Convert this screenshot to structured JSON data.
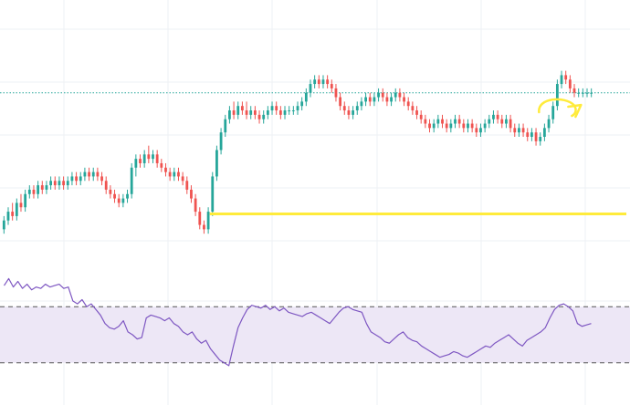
{
  "chart_data": [
    {
      "type": "candlestick",
      "title": "",
      "xlabel": "",
      "ylabel": "",
      "ylim": [
        62,
        120
      ],
      "grid": true,
      "colors": {
        "up": "#26a69a",
        "down": "#ef5350",
        "annotation": "#ffeb3b",
        "last_price_line": "#26a69a"
      },
      "candles": [
        [
          70,
          73,
          69,
          72
        ],
        [
          72,
          75,
          71,
          74
        ],
        [
          74,
          76,
          72,
          73
        ],
        [
          73,
          77,
          72,
          76
        ],
        [
          76,
          78,
          74,
          75
        ],
        [
          75,
          79,
          74,
          78
        ],
        [
          78,
          80,
          77,
          79
        ],
        [
          79,
          80,
          77,
          78
        ],
        [
          78,
          81,
          77,
          80
        ],
        [
          80,
          81,
          78,
          79
        ],
        [
          79,
          81,
          78,
          80
        ],
        [
          80,
          82,
          79,
          81
        ],
        [
          81,
          82,
          79,
          80
        ],
        [
          80,
          82,
          79,
          81
        ],
        [
          81,
          82,
          79,
          80
        ],
        [
          80,
          82,
          79,
          81
        ],
        [
          81,
          83,
          80,
          82
        ],
        [
          82,
          83,
          80,
          81
        ],
        [
          81,
          83,
          80,
          82
        ],
        [
          82,
          84,
          81,
          83
        ],
        [
          83,
          84,
          81,
          82
        ],
        [
          82,
          84,
          81,
          83
        ],
        [
          83,
          84,
          81,
          82
        ],
        [
          82,
          83,
          80,
          81
        ],
        [
          81,
          82,
          78,
          79
        ],
        [
          79,
          80,
          77,
          78
        ],
        [
          78,
          79,
          76,
          77
        ],
        [
          77,
          78,
          75,
          76
        ],
        [
          76,
          78,
          75,
          77
        ],
        [
          77,
          79,
          76,
          78
        ],
        [
          78,
          85,
          77,
          84
        ],
        [
          84,
          87,
          82,
          86
        ],
        [
          86,
          87,
          84,
          85
        ],
        [
          85,
          88,
          84,
          87
        ],
        [
          87,
          89,
          85,
          86
        ],
        [
          86,
          88,
          85,
          87
        ],
        [
          87,
          88,
          84,
          85
        ],
        [
          85,
          86,
          83,
          84
        ],
        [
          84,
          85,
          82,
          83
        ],
        [
          83,
          84,
          81,
          82
        ],
        [
          82,
          84,
          81,
          83
        ],
        [
          83,
          84,
          81,
          82
        ],
        [
          82,
          83,
          80,
          81
        ],
        [
          81,
          82,
          78,
          79
        ],
        [
          79,
          80,
          76,
          77
        ],
        [
          77,
          78,
          73,
          74
        ],
        [
          74,
          75,
          70,
          71
        ],
        [
          71,
          72,
          69,
          70
        ],
        [
          70,
          75,
          69,
          74
        ],
        [
          74,
          83,
          73,
          82
        ],
        [
          82,
          89,
          81,
          88
        ],
        [
          88,
          93,
          87,
          92
        ],
        [
          92,
          96,
          91,
          95
        ],
        [
          95,
          98,
          94,
          97
        ],
        [
          97,
          99,
          95,
          96
        ],
        [
          96,
          99,
          95,
          98
        ],
        [
          98,
          99,
          96,
          97
        ],
        [
          97,
          99,
          95,
          96
        ],
        [
          96,
          98,
          95,
          97
        ],
        [
          97,
          98,
          95,
          96
        ],
        [
          96,
          97,
          94,
          95
        ],
        [
          95,
          97,
          94,
          96
        ],
        [
          96,
          98,
          95,
          97
        ],
        [
          97,
          99,
          96,
          98
        ],
        [
          98,
          99,
          96,
          97
        ],
        [
          97,
          98,
          95,
          96
        ],
        [
          96,
          98,
          95,
          97
        ],
        [
          97,
          98,
          96,
          97
        ],
        [
          97,
          98,
          96,
          97
        ],
        [
          97,
          99,
          96,
          98
        ],
        [
          98,
          100,
          97,
          99
        ],
        [
          99,
          102,
          98,
          101
        ],
        [
          101,
          104,
          100,
          103
        ],
        [
          103,
          105,
          102,
          104
        ],
        [
          104,
          105,
          102,
          103
        ],
        [
          103,
          105,
          102,
          104
        ],
        [
          104,
          105,
          102,
          103
        ],
        [
          103,
          104,
          101,
          102
        ],
        [
          102,
          103,
          99,
          100
        ],
        [
          100,
          101,
          97,
          98
        ],
        [
          98,
          99,
          96,
          97
        ],
        [
          97,
          98,
          95,
          96
        ],
        [
          96,
          98,
          95,
          97
        ],
        [
          97,
          99,
          96,
          98
        ],
        [
          98,
          100,
          97,
          99
        ],
        [
          99,
          101,
          98,
          100
        ],
        [
          100,
          101,
          98,
          99
        ],
        [
          99,
          101,
          98,
          100
        ],
        [
          100,
          102,
          99,
          101
        ],
        [
          101,
          102,
          99,
          100
        ],
        [
          100,
          101,
          98,
          99
        ],
        [
          99,
          101,
          98,
          100
        ],
        [
          100,
          102,
          99,
          101
        ],
        [
          101,
          102,
          99,
          100
        ],
        [
          100,
          101,
          98,
          99
        ],
        [
          99,
          100,
          97,
          98
        ],
        [
          98,
          99,
          96,
          97
        ],
        [
          97,
          98,
          95,
          96
        ],
        [
          96,
          97,
          94,
          95
        ],
        [
          95,
          96,
          93,
          94
        ],
        [
          94,
          95,
          92,
          93
        ],
        [
          93,
          95,
          92,
          94
        ],
        [
          94,
          96,
          93,
          95
        ],
        [
          95,
          96,
          93,
          94
        ],
        [
          94,
          95,
          92,
          93
        ],
        [
          93,
          95,
          92,
          94
        ],
        [
          94,
          96,
          93,
          95
        ],
        [
          95,
          96,
          93,
          94
        ],
        [
          94,
          95,
          92,
          93
        ],
        [
          93,
          95,
          92,
          94
        ],
        [
          94,
          95,
          92,
          93
        ],
        [
          93,
          94,
          91,
          92
        ],
        [
          92,
          94,
          91,
          93
        ],
        [
          93,
          95,
          92,
          94
        ],
        [
          94,
          96,
          93,
          95
        ],
        [
          95,
          97,
          94,
          96
        ],
        [
          96,
          97,
          94,
          95
        ],
        [
          95,
          96,
          93,
          94
        ],
        [
          94,
          96,
          93,
          95
        ],
        [
          95,
          96,
          92,
          93
        ],
        [
          93,
          94,
          91,
          92
        ],
        [
          92,
          94,
          91,
          93
        ],
        [
          93,
          94,
          91,
          92
        ],
        [
          92,
          93,
          90,
          91
        ],
        [
          91,
          93,
          90,
          92
        ],
        [
          92,
          93,
          89,
          90
        ],
        [
          90,
          92,
          89,
          91
        ],
        [
          91,
          94,
          90,
          93
        ],
        [
          93,
          96,
          92,
          95
        ],
        [
          95,
          99,
          94,
          98
        ],
        [
          98,
          104,
          97,
          103
        ],
        [
          103,
          106,
          102,
          105
        ],
        [
          105,
          106,
          103,
          104
        ],
        [
          104,
          105,
          101,
          102
        ],
        [
          102,
          103,
          100,
          101
        ],
        [
          101,
          102,
          100,
          101
        ],
        [
          101,
          102,
          100,
          101
        ],
        [
          101,
          102,
          100,
          101
        ],
        [
          101,
          102,
          100,
          101
        ]
      ],
      "last_price": 101,
      "annotations": [
        {
          "type": "horizontal_line",
          "y": 73.5,
          "x_start_index": 49
        },
        {
          "type": "curved_arrow",
          "near_index": 130
        }
      ]
    },
    {
      "type": "line",
      "title": "",
      "xlabel": "",
      "ylabel": "",
      "ylim": [
        0,
        100
      ],
      "band": [
        30,
        70
      ],
      "grid": true,
      "colors": {
        "line": "#7e57c2",
        "band": "#ede7f6",
        "band_border": "#555555"
      },
      "series": [
        {
          "values": [
            85,
            90,
            84,
            88,
            83,
            86,
            82,
            84,
            83,
            86,
            84,
            85,
            86,
            83,
            84,
            74,
            72,
            75,
            70,
            72,
            68,
            64,
            58,
            55,
            54,
            56,
            60,
            52,
            50,
            47,
            48,
            62,
            64,
            63,
            62,
            60,
            62,
            58,
            56,
            52,
            50,
            52,
            47,
            44,
            46,
            40,
            36,
            32,
            30,
            28,
            42,
            55,
            62,
            68,
            71,
            70,
            69,
            71,
            68,
            70,
            67,
            69,
            66,
            65,
            64,
            63,
            65,
            66,
            64,
            62,
            60,
            58,
            62,
            66,
            69,
            70,
            68,
            67,
            66,
            58,
            52,
            50,
            48,
            45,
            44,
            47,
            50,
            52,
            48,
            46,
            45,
            42,
            40,
            38,
            36,
            34,
            35,
            36,
            38,
            37,
            35,
            34,
            36,
            38,
            40,
            42,
            41,
            44,
            46,
            48,
            50,
            47,
            44,
            42,
            46,
            48,
            50,
            52,
            55,
            62,
            68,
            71,
            72,
            70,
            67,
            58,
            56,
            57,
            58
          ]
        }
      ]
    }
  ]
}
